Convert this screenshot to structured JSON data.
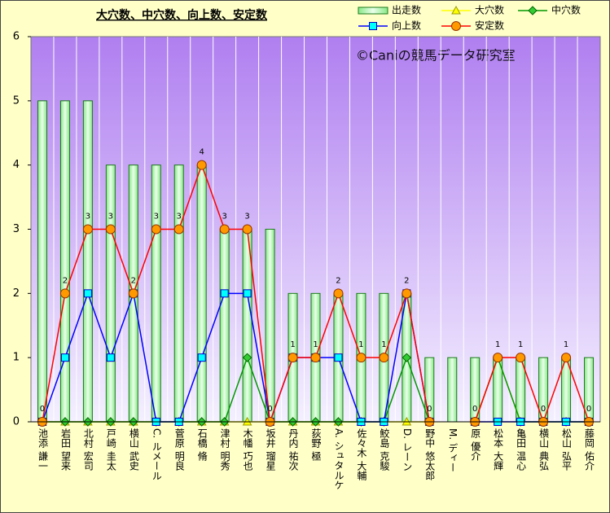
{
  "chart_data": {
    "type": "bar",
    "title": "大穴数、中穴数、向上数、安定数",
    "annotation": "©Caniの競馬データ研究室",
    "categories": [
      "池添 謙一",
      "岩田 望来",
      "北村 宏司",
      "戸崎 圭太",
      "横山 武史",
      "C. ルメール",
      "菅原 明良",
      "石橋 脩",
      "津村 明秀",
      "木幡 巧也",
      "坂井 瑠星",
      "丹内 祐次",
      "荻野 極",
      "A. シュタルケ",
      "佐々木 大輔",
      "鮫島 克駿",
      "D. レーン",
      "野中 悠太郎",
      "M. ディー",
      "原 優介",
      "松本 大輝",
      "亀田 温心",
      "横山 典弘",
      "松山 弘平",
      "藤岡 佑介"
    ],
    "series": [
      {
        "name": "出走数",
        "type": "bar",
        "color": "#ccffcc",
        "values": [
          5,
          5,
          5,
          4,
          4,
          4,
          4,
          4,
          3,
          3,
          3,
          2,
          2,
          2,
          2,
          2,
          2,
          1,
          1,
          1,
          1,
          1,
          1,
          1,
          1
        ]
      },
      {
        "name": "大穴数",
        "type": "line",
        "marker": "triangle",
        "color": "#ffff00",
        "values": [
          0,
          0,
          0,
          0,
          0,
          0,
          0,
          0,
          0,
          0,
          0,
          0,
          0,
          0,
          0,
          0,
          0,
          0,
          null,
          0,
          1,
          0,
          0,
          0,
          0
        ]
      },
      {
        "name": "中穴数",
        "type": "line",
        "marker": "diamond",
        "color": "#009900",
        "values": [
          0,
          0,
          0,
          0,
          0,
          0,
          0,
          0,
          0,
          1,
          0,
          0,
          0,
          0,
          0,
          0,
          1,
          0,
          null,
          0,
          1,
          0,
          0,
          0,
          0
        ]
      },
      {
        "name": "向上数",
        "type": "line",
        "marker": "square",
        "color": "#0000ff",
        "values": [
          0,
          1,
          2,
          1,
          2,
          0,
          0,
          1,
          2,
          2,
          0,
          1,
          1,
          1,
          0,
          0,
          2,
          0,
          null,
          0,
          0,
          0,
          0,
          0,
          0
        ]
      },
      {
        "name": "安定数",
        "type": "line",
        "marker": "circle",
        "color": "#ff0000",
        "data_labels": true,
        "values": [
          0,
          2,
          3,
          3,
          2,
          3,
          3,
          4,
          3,
          3,
          0,
          1,
          1,
          2,
          1,
          1,
          2,
          0,
          null,
          0,
          1,
          1,
          0,
          1,
          0
        ]
      }
    ],
    "ylim": [
      0,
      6
    ],
    "yticks": [
      0,
      1,
      2,
      3,
      4,
      5,
      6
    ],
    "grid": true
  }
}
